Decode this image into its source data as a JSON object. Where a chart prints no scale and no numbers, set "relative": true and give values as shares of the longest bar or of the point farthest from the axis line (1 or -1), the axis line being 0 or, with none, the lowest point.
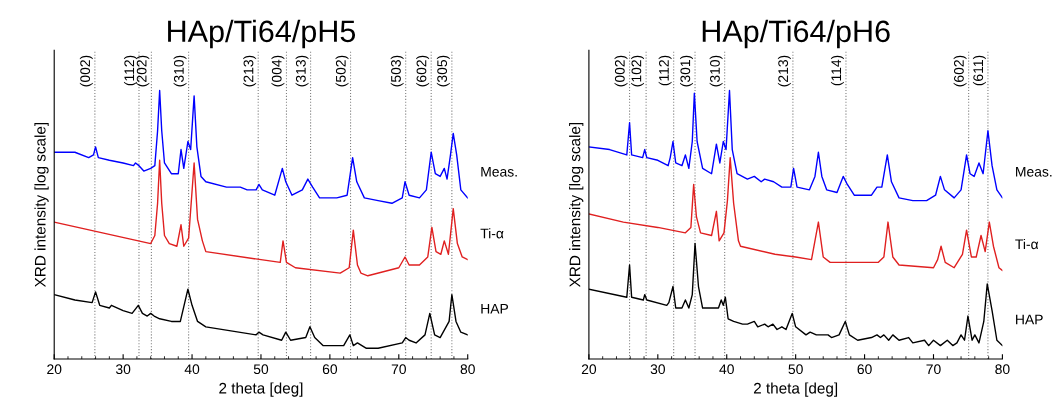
{
  "chart_data": [
    {
      "type": "line",
      "title": "HAp/Ti64/pH5",
      "xlabel": "2 theta [deg]",
      "ylabel": "XRD intensity [log scale]",
      "relative": true,
      "xlim": [
        20,
        80
      ],
      "xticks": [
        20,
        30,
        40,
        50,
        60,
        70,
        80
      ],
      "line_style": "solid",
      "ref_lines": [
        {
          "axis": "x",
          "value": 25.9,
          "color": "#808080",
          "line_style": "dotted"
        },
        {
          "axis": "x",
          "value": 32.3,
          "color": "#808080",
          "line_style": "dotted"
        },
        {
          "axis": "x",
          "value": 34.1,
          "color": "#808080",
          "line_style": "dotted"
        },
        {
          "axis": "x",
          "value": 39.5,
          "color": "#808080",
          "line_style": "dotted"
        },
        {
          "axis": "x",
          "value": 49.6,
          "color": "#808080",
          "line_style": "dotted"
        },
        {
          "axis": "x",
          "value": 53.7,
          "color": "#808080",
          "line_style": "dotted"
        },
        {
          "axis": "x",
          "value": 57.2,
          "color": "#808080",
          "line_style": "dotted"
        },
        {
          "axis": "x",
          "value": 63.0,
          "color": "#808080",
          "line_style": "dotted"
        },
        {
          "axis": "x",
          "value": 71.0,
          "color": "#808080",
          "line_style": "dotted"
        },
        {
          "axis": "x",
          "value": 74.7,
          "color": "#808080",
          "line_style": "dotted"
        },
        {
          "axis": "x",
          "value": 77.7,
          "color": "#808080",
          "line_style": "dotted"
        }
      ],
      "annotations": [
        {
          "text": "(002)",
          "x": 25.9
        },
        {
          "text": "(112)",
          "x": 32.3
        },
        {
          "text": "(202)",
          "x": 34.1
        },
        {
          "text": "(310)",
          "x": 39.5
        },
        {
          "text": "(213)",
          "x": 49.6
        },
        {
          "text": "(004)",
          "x": 53.7
        },
        {
          "text": "(313)",
          "x": 57.2
        },
        {
          "text": "(502)",
          "x": 63.0
        },
        {
          "text": "(503)",
          "x": 71.0
        },
        {
          "text": "(602)",
          "x": 74.7
        },
        {
          "text": "(305)",
          "x": 77.7
        }
      ],
      "series": [
        {
          "name": "Meas.",
          "color": "#0000ff",
          "x": [
            20,
            23,
            25,
            25.7,
            26,
            26.4,
            28,
            30,
            31.5,
            31.8,
            32.3,
            33,
            34,
            34.6,
            35,
            35.3,
            35.6,
            36,
            37,
            38,
            38.4,
            38.8,
            39.4,
            39.8,
            40.3,
            40.7,
            41.3,
            42,
            45,
            47,
            48,
            49.3,
            49.7,
            50.2,
            52,
            53.1,
            53.6,
            54.5,
            56,
            56.8,
            57.5,
            58.5,
            61,
            62.5,
            63.3,
            63.9,
            65,
            67,
            69,
            70.5,
            70.9,
            71.5,
            73,
            74,
            74.7,
            75.3,
            76,
            76.6,
            77,
            77.5,
            77.9,
            78.4,
            79,
            80
          ],
          "values": [
            0.77,
            0.77,
            0.75,
            0.76,
            0.79,
            0.75,
            0.74,
            0.73,
            0.72,
            0.73,
            0.72,
            0.7,
            0.71,
            0.72,
            0.85,
            1.0,
            0.85,
            0.73,
            0.69,
            0.69,
            0.78,
            0.71,
            0.81,
            0.78,
            0.98,
            0.79,
            0.68,
            0.66,
            0.64,
            0.64,
            0.63,
            0.63,
            0.65,
            0.63,
            0.61,
            0.71,
            0.66,
            0.61,
            0.63,
            0.67,
            0.64,
            0.6,
            0.6,
            0.61,
            0.75,
            0.66,
            0.6,
            0.59,
            0.58,
            0.6,
            0.66,
            0.61,
            0.6,
            0.63,
            0.77,
            0.69,
            0.68,
            0.71,
            0.67,
            0.76,
            0.84,
            0.76,
            0.63,
            0.6
          ]
        },
        {
          "name": "Ti-α",
          "color": "#e02020",
          "x": [
            20,
            34,
            34.6,
            35,
            35.3,
            35.6,
            36,
            36.7,
            37.8,
            38.4,
            38.8,
            39.5,
            40.3,
            40.8,
            41.5,
            42,
            50,
            52.8,
            53.2,
            53.7,
            55,
            61.5,
            62.8,
            63.4,
            64,
            64.5,
            65.5,
            70,
            70.9,
            71.5,
            73,
            74.2,
            74.8,
            75.4,
            76.1,
            76.6,
            77.2,
            77.9,
            78.5,
            79.2,
            80
          ],
          "values": [
            0.51,
            0.43,
            0.46,
            0.58,
            0.74,
            0.58,
            0.46,
            0.43,
            0.42,
            0.5,
            0.42,
            0.45,
            0.73,
            0.52,
            0.44,
            0.4,
            0.37,
            0.36,
            0.44,
            0.36,
            0.34,
            0.32,
            0.34,
            0.48,
            0.35,
            0.32,
            0.31,
            0.34,
            0.38,
            0.35,
            0.35,
            0.38,
            0.49,
            0.4,
            0.39,
            0.44,
            0.39,
            0.56,
            0.43,
            0.38,
            0.37
          ]
        },
        {
          "name": "HAP",
          "color": "#000000",
          "x": [
            20,
            23,
            25.5,
            26,
            26.6,
            28,
            28.3,
            30,
            31.3,
            32.2,
            32.8,
            33.5,
            34,
            34.5,
            35.3,
            37,
            38.3,
            39.4,
            40,
            40.8,
            42,
            49.3,
            49.7,
            50.3,
            53,
            53.6,
            54.3,
            56.5,
            57.1,
            57.8,
            59,
            62,
            62.9,
            63.4,
            64,
            65.3,
            67,
            70.5,
            71,
            71.5,
            72.5,
            73.8,
            74.5,
            75.2,
            76,
            77.3,
            77.7,
            78.3,
            79,
            80
          ],
          "values": [
            0.24,
            0.22,
            0.21,
            0.25,
            0.2,
            0.19,
            0.2,
            0.18,
            0.17,
            0.2,
            0.17,
            0.16,
            0.17,
            0.16,
            0.15,
            0.14,
            0.14,
            0.26,
            0.2,
            0.14,
            0.12,
            0.09,
            0.1,
            0.09,
            0.07,
            0.1,
            0.07,
            0.08,
            0.12,
            0.08,
            0.05,
            0.05,
            0.09,
            0.05,
            0.06,
            0.04,
            0.04,
            0.06,
            0.08,
            0.07,
            0.06,
            0.09,
            0.17,
            0.09,
            0.08,
            0.14,
            0.24,
            0.14,
            0.1,
            0.09
          ]
        }
      ]
    },
    {
      "type": "line",
      "title": "HAp/Ti64/pH6",
      "xlabel": "2 theta [deg]",
      "ylabel": "XRD intensity [log scale]",
      "relative": true,
      "xlim": [
        20,
        80
      ],
      "xticks": [
        20,
        30,
        40,
        50,
        60,
        70,
        80
      ],
      "line_style": "solid",
      "ref_lines": [
        {
          "axis": "x",
          "value": 25.9,
          "color": "#808080",
          "line_style": "dotted"
        },
        {
          "axis": "x",
          "value": 28.3,
          "color": "#808080",
          "line_style": "dotted"
        },
        {
          "axis": "x",
          "value": 32.3,
          "color": "#808080",
          "line_style": "dotted"
        },
        {
          "axis": "x",
          "value": 35.4,
          "color": "#808080",
          "line_style": "dotted"
        },
        {
          "axis": "x",
          "value": 39.7,
          "color": "#808080",
          "line_style": "dotted"
        },
        {
          "axis": "x",
          "value": 49.6,
          "color": "#808080",
          "line_style": "dotted"
        },
        {
          "axis": "x",
          "value": 57.3,
          "color": "#808080",
          "line_style": "dotted"
        },
        {
          "axis": "x",
          "value": 75.1,
          "color": "#808080",
          "line_style": "dotted"
        },
        {
          "axis": "x",
          "value": 77.9,
          "color": "#808080",
          "line_style": "dotted"
        }
      ],
      "annotations": [
        {
          "text": "(002)",
          "x": 25.9
        },
        {
          "text": "(102)",
          "x": 28.3
        },
        {
          "text": "(112)",
          "x": 32.3
        },
        {
          "text": "(301)",
          "x": 35.4
        },
        {
          "text": "(310)",
          "x": 39.7
        },
        {
          "text": "(213)",
          "x": 49.6
        },
        {
          "text": "(114)",
          "x": 57.3
        },
        {
          "text": "(602)",
          "x": 75.1
        },
        {
          "text": "(611)",
          "x": 77.9
        }
      ],
      "series": [
        {
          "name": "Meas.",
          "color": "#0000ff",
          "x": [
            20,
            23,
            25.5,
            25.9,
            26.2,
            27.8,
            28.1,
            28.4,
            30,
            31.5,
            31.8,
            32.2,
            32.6,
            33.5,
            34,
            34.5,
            35,
            35.3,
            35.7,
            36.5,
            37.8,
            38.5,
            39,
            39.5,
            39.9,
            40.4,
            40.8,
            41.5,
            43,
            44,
            45,
            45.5,
            46.8,
            48,
            49.3,
            49.7,
            50.2,
            52,
            52.8,
            53.3,
            53.8,
            54.5,
            56,
            56.9,
            57.5,
            58.5,
            61,
            61.8,
            62.5,
            63.3,
            63.9,
            65,
            67,
            69,
            70.3,
            71,
            71.6,
            73,
            74,
            74.8,
            75.3,
            75.9,
            76.6,
            77.2,
            77.9,
            78.5,
            79.2,
            80
          ],
          "values": [
            0.79,
            0.78,
            0.76,
            0.88,
            0.76,
            0.75,
            0.78,
            0.75,
            0.74,
            0.72,
            0.75,
            0.81,
            0.73,
            0.72,
            0.76,
            0.71,
            0.81,
            0.99,
            0.81,
            0.71,
            0.69,
            0.8,
            0.73,
            0.81,
            0.78,
            1.0,
            0.78,
            0.69,
            0.67,
            0.68,
            0.66,
            0.67,
            0.66,
            0.64,
            0.64,
            0.71,
            0.64,
            0.63,
            0.68,
            0.77,
            0.68,
            0.63,
            0.62,
            0.68,
            0.65,
            0.61,
            0.61,
            0.64,
            0.64,
            0.76,
            0.66,
            0.6,
            0.59,
            0.59,
            0.61,
            0.68,
            0.63,
            0.6,
            0.63,
            0.76,
            0.69,
            0.68,
            0.73,
            0.69,
            0.85,
            0.72,
            0.63,
            0.6
          ]
        },
        {
          "name": "Ti-α",
          "color": "#e02020",
          "x": [
            20,
            25,
            30,
            34,
            34.8,
            35.2,
            35.6,
            36.2,
            37.8,
            38.5,
            38.9,
            39.6,
            40.1,
            40.5,
            41,
            41.7,
            42,
            47,
            50,
            52.3,
            53.3,
            54,
            55,
            62,
            62.8,
            63.4,
            64.1,
            65,
            70,
            70.6,
            71.1,
            71.7,
            73,
            74.2,
            74.8,
            75.5,
            76.2,
            76.9,
            77.5,
            78.1,
            78.7,
            79.5,
            80
          ],
          "values": [
            0.54,
            0.51,
            0.49,
            0.47,
            0.49,
            0.65,
            0.53,
            0.47,
            0.46,
            0.55,
            0.44,
            0.47,
            0.59,
            0.75,
            0.58,
            0.44,
            0.42,
            0.39,
            0.38,
            0.37,
            0.51,
            0.38,
            0.36,
            0.36,
            0.38,
            0.51,
            0.38,
            0.35,
            0.34,
            0.37,
            0.42,
            0.36,
            0.34,
            0.39,
            0.48,
            0.38,
            0.38,
            0.46,
            0.4,
            0.51,
            0.42,
            0.34,
            0.33
          ]
        },
        {
          "name": "HAP",
          "color": "#000000",
          "x": [
            20,
            25.5,
            25.9,
            26.2,
            27.9,
            28.1,
            28.4,
            31.3,
            31.6,
            32.2,
            32.6,
            33.5,
            34,
            34.5,
            35,
            35.4,
            35.9,
            36.5,
            38.8,
            39.2,
            39.5,
            39.8,
            40.2,
            41,
            42.3,
            43,
            44,
            44.5,
            45.5,
            46,
            46.7,
            47.3,
            48,
            48.6,
            49.5,
            50,
            51.5,
            52.1,
            53,
            54.7,
            55.2,
            56.3,
            57.2,
            57.8,
            59,
            61,
            61.8,
            62.3,
            62.8,
            63.5,
            64.1,
            65,
            66.4,
            67,
            68.7,
            69.3,
            70,
            71,
            72,
            72.8,
            73.4,
            74,
            74.5,
            75,
            75.6,
            76,
            76.6,
            77.3,
            77.8,
            78.5,
            79.2,
            80
          ],
          "values": [
            0.26,
            0.23,
            0.35,
            0.23,
            0.22,
            0.24,
            0.22,
            0.2,
            0.21,
            0.27,
            0.19,
            0.19,
            0.22,
            0.19,
            0.24,
            0.43,
            0.27,
            0.19,
            0.19,
            0.22,
            0.2,
            0.23,
            0.15,
            0.14,
            0.13,
            0.13,
            0.14,
            0.12,
            0.13,
            0.12,
            0.13,
            0.11,
            0.12,
            0.11,
            0.17,
            0.12,
            0.09,
            0.1,
            0.09,
            0.09,
            0.08,
            0.09,
            0.14,
            0.09,
            0.07,
            0.08,
            0.09,
            0.08,
            0.09,
            0.07,
            0.09,
            0.07,
            0.08,
            0.06,
            0.07,
            0.05,
            0.07,
            0.05,
            0.07,
            0.05,
            0.06,
            0.09,
            0.07,
            0.16,
            0.07,
            0.09,
            0.06,
            0.14,
            0.28,
            0.18,
            0.07,
            0.05
          ]
        }
      ]
    }
  ]
}
